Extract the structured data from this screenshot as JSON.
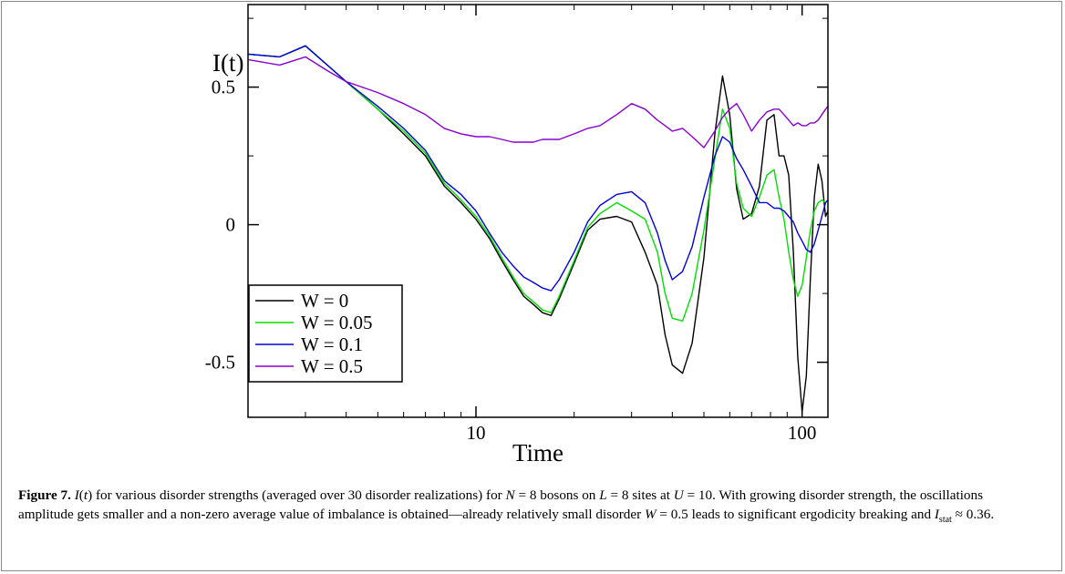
{
  "chart_data": {
    "type": "line",
    "title": "",
    "xlabel": "Time",
    "ylabel": "I(t)",
    "xscale": "log",
    "xlim": [
      2,
      120
    ],
    "ylim": [
      -0.7,
      0.8
    ],
    "x_major_ticks": [
      10,
      100
    ],
    "x_tick_labels": [
      "10",
      "100"
    ],
    "y_major_ticks": [
      -0.5,
      0,
      0.5
    ],
    "y_tick_labels": [
      "-0.5",
      "0",
      "0.5"
    ],
    "grid": false,
    "legend_position": "bottom-left",
    "series": [
      {
        "name": "W = 0",
        "color": "#000000",
        "x": [
          2,
          2.5,
          3,
          3.5,
          4,
          5,
          6,
          7,
          8,
          9,
          10,
          11,
          12,
          13,
          14,
          15,
          16,
          17,
          18,
          20,
          22,
          24,
          27,
          30,
          33,
          36,
          38,
          40,
          43,
          46,
          50,
          54,
          57,
          60,
          63,
          66,
          70,
          74,
          78,
          82,
          85,
          88,
          91,
          94,
          97,
          100,
          103,
          106,
          109,
          112,
          115,
          118,
          120
        ],
        "y": [
          0.62,
          0.61,
          0.65,
          0.58,
          0.52,
          0.42,
          0.33,
          0.25,
          0.14,
          0.08,
          0.02,
          -0.05,
          -0.13,
          -0.2,
          -0.26,
          -0.29,
          -0.32,
          -0.33,
          -0.27,
          -0.14,
          -0.02,
          0.02,
          0.03,
          0.01,
          -0.1,
          -0.22,
          -0.4,
          -0.51,
          -0.54,
          -0.43,
          -0.12,
          0.33,
          0.54,
          0.4,
          0.13,
          0.02,
          0.04,
          0.14,
          0.38,
          0.4,
          0.25,
          0.25,
          0.18,
          -0.1,
          -0.48,
          -0.68,
          -0.55,
          -0.2,
          0.1,
          0.22,
          0.16,
          0.03,
          0.05
        ]
      },
      {
        "name": "W = 0.05",
        "color": "#00e000",
        "x": [
          2,
          2.5,
          3,
          3.5,
          4,
          5,
          6,
          7,
          8,
          9,
          10,
          11,
          12,
          13,
          14,
          15,
          16,
          17,
          18,
          20,
          22,
          24,
          27,
          30,
          33,
          36,
          38,
          40,
          43,
          46,
          50,
          54,
          57,
          60,
          63,
          66,
          70,
          74,
          78,
          82,
          85,
          88,
          91,
          94,
          97,
          100,
          103,
          106,
          109,
          112,
          115,
          118,
          120
        ],
        "y": [
          0.62,
          0.61,
          0.65,
          0.58,
          0.52,
          0.42,
          0.34,
          0.26,
          0.15,
          0.09,
          0.03,
          -0.04,
          -0.12,
          -0.19,
          -0.25,
          -0.28,
          -0.31,
          -0.32,
          -0.26,
          -0.13,
          -0.01,
          0.04,
          0.08,
          0.05,
          0.02,
          -0.1,
          -0.25,
          -0.34,
          -0.35,
          -0.25,
          -0.02,
          0.24,
          0.42,
          0.35,
          0.15,
          0.06,
          0.03,
          0.1,
          0.18,
          0.2,
          0.1,
          0.02,
          -0.1,
          -0.2,
          -0.26,
          -0.22,
          -0.12,
          -0.02,
          0.05,
          0.08,
          0.09,
          0.08,
          0.09
        ]
      },
      {
        "name": "W = 0.1",
        "color": "#0000dd",
        "x": [
          2,
          2.5,
          3,
          3.5,
          4,
          5,
          6,
          7,
          8,
          9,
          10,
          11,
          12,
          13,
          14,
          15,
          16,
          17,
          18,
          20,
          22,
          24,
          27,
          30,
          33,
          36,
          38,
          40,
          43,
          46,
          50,
          54,
          57,
          60,
          63,
          66,
          70,
          74,
          78,
          82,
          85,
          88,
          91,
          94,
          97,
          100,
          103,
          106,
          109,
          112,
          115,
          118,
          120
        ],
        "y": [
          0.62,
          0.61,
          0.65,
          0.58,
          0.52,
          0.43,
          0.35,
          0.27,
          0.16,
          0.11,
          0.05,
          -0.03,
          -0.1,
          -0.15,
          -0.19,
          -0.21,
          -0.23,
          -0.24,
          -0.2,
          -0.1,
          0.01,
          0.07,
          0.11,
          0.12,
          0.08,
          -0.03,
          -0.13,
          -0.2,
          -0.17,
          -0.08,
          0.1,
          0.25,
          0.32,
          0.3,
          0.24,
          0.2,
          0.14,
          0.08,
          0.08,
          0.06,
          0.06,
          0.05,
          0.03,
          0.01,
          -0.03,
          -0.06,
          -0.09,
          -0.1,
          -0.07,
          -0.02,
          0.03,
          0.08,
          0.09
        ]
      },
      {
        "name": "W = 0.5",
        "color": "#8a00d4",
        "x": [
          2,
          2.5,
          3,
          3.5,
          4,
          5,
          6,
          7,
          8,
          9,
          10,
          11,
          12,
          13,
          14,
          15,
          16,
          17,
          18,
          20,
          22,
          24,
          27,
          30,
          33,
          36,
          38,
          40,
          43,
          46,
          50,
          54,
          57,
          60,
          63,
          66,
          70,
          74,
          78,
          82,
          85,
          88,
          91,
          94,
          97,
          100,
          103,
          106,
          109,
          112,
          115,
          118,
          120
        ],
        "y": [
          0.6,
          0.58,
          0.61,
          0.56,
          0.52,
          0.48,
          0.44,
          0.4,
          0.35,
          0.33,
          0.32,
          0.32,
          0.31,
          0.3,
          0.3,
          0.3,
          0.31,
          0.31,
          0.31,
          0.33,
          0.35,
          0.36,
          0.4,
          0.44,
          0.42,
          0.38,
          0.36,
          0.34,
          0.35,
          0.32,
          0.28,
          0.34,
          0.39,
          0.42,
          0.44,
          0.4,
          0.34,
          0.38,
          0.41,
          0.42,
          0.42,
          0.4,
          0.38,
          0.36,
          0.37,
          0.36,
          0.36,
          0.37,
          0.37,
          0.38,
          0.4,
          0.42,
          0.43
        ]
      }
    ]
  },
  "caption": {
    "label": "Figure 7.",
    "seg1": " for various disorder strengths (averaged over 30 disorder realizations) for ",
    "seg2": " bosons on ",
    "seg3": " sites at ",
    "seg4": ". With growing disorder strength, the oscillations amplitude gets smaller and a non-zero average value of imbalance is obtained—already relatively small disorder ",
    "seg5": " leads to significant ergodicity breaking and ",
    "sym_I": "I",
    "sym_t": "t",
    "sym_N": "N",
    "eq_N": " = 8",
    "sym_L": "L",
    "eq_L": " = 8",
    "sym_U": "U",
    "eq_U": " = 10",
    "sym_W": "W",
    "eq_W": " = 0.5",
    "sym_Istat": "I",
    "sub_stat": "stat",
    "approx": " ≈ 0.36."
  }
}
